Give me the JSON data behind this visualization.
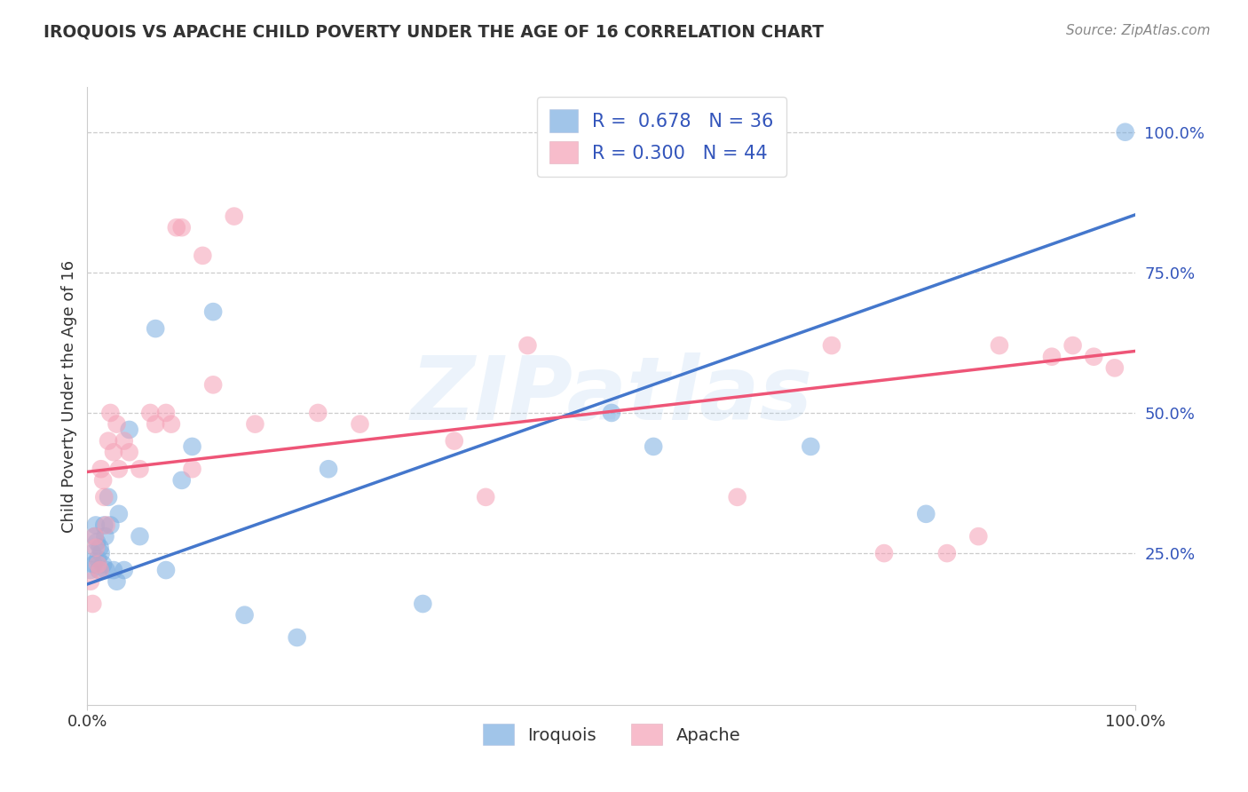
{
  "title": "IROQUOIS VS APACHE CHILD POVERTY UNDER THE AGE OF 16 CORRELATION CHART",
  "source": "Source: ZipAtlas.com",
  "ylabel": "Child Poverty Under the Age of 16",
  "xlim": [
    0,
    1
  ],
  "ylim": [
    -0.02,
    1.08
  ],
  "x_ticks": [
    0,
    1
  ],
  "x_tick_labels": [
    "0.0%",
    "100.0%"
  ],
  "y_ticks": [
    0.25,
    0.5,
    0.75,
    1.0
  ],
  "y_tick_labels": [
    "25.0%",
    "50.0%",
    "75.0%",
    "100.0%"
  ],
  "watermark": "ZIPatlas",
  "legend_r1": "R =  0.678",
  "legend_n1": "N = 36",
  "legend_r2": "R = 0.300",
  "legend_n2": "N = 44",
  "blue_scatter_color": "#7aade0",
  "pink_scatter_color": "#f5a0b5",
  "blue_line_color": "#4477cc",
  "pink_line_color": "#ee5577",
  "blue_regression_slope": 0.658,
  "blue_regression_intercept": 0.195,
  "pink_regression_slope": 0.215,
  "pink_regression_intercept": 0.395,
  "iroquois_x": [
    0.003,
    0.005,
    0.006,
    0.007,
    0.008,
    0.009,
    0.01,
    0.011,
    0.012,
    0.013,
    0.015,
    0.016,
    0.017,
    0.018,
    0.02,
    0.022,
    0.025,
    0.028,
    0.03,
    0.035,
    0.04,
    0.05,
    0.065,
    0.075,
    0.09,
    0.1,
    0.12,
    0.15,
    0.2,
    0.23,
    0.32,
    0.5,
    0.54,
    0.69,
    0.8,
    0.99
  ],
  "iroquois_y": [
    0.22,
    0.25,
    0.23,
    0.28,
    0.3,
    0.27,
    0.24,
    0.22,
    0.26,
    0.25,
    0.23,
    0.3,
    0.28,
    0.22,
    0.35,
    0.3,
    0.22,
    0.2,
    0.32,
    0.22,
    0.47,
    0.28,
    0.65,
    0.22,
    0.38,
    0.44,
    0.68,
    0.14,
    0.1,
    0.4,
    0.16,
    0.5,
    0.44,
    0.44,
    0.32,
    1.0
  ],
  "apache_x": [
    0.003,
    0.005,
    0.007,
    0.008,
    0.01,
    0.012,
    0.013,
    0.015,
    0.016,
    0.018,
    0.02,
    0.022,
    0.025,
    0.028,
    0.03,
    0.035,
    0.04,
    0.05,
    0.06,
    0.065,
    0.075,
    0.08,
    0.085,
    0.09,
    0.1,
    0.11,
    0.12,
    0.14,
    0.16,
    0.22,
    0.26,
    0.35,
    0.38,
    0.42,
    0.62,
    0.71,
    0.76,
    0.82,
    0.85,
    0.87,
    0.92,
    0.94,
    0.96,
    0.98
  ],
  "apache_y": [
    0.2,
    0.16,
    0.28,
    0.26,
    0.23,
    0.22,
    0.4,
    0.38,
    0.35,
    0.3,
    0.45,
    0.5,
    0.43,
    0.48,
    0.4,
    0.45,
    0.43,
    0.4,
    0.5,
    0.48,
    0.5,
    0.48,
    0.83,
    0.83,
    0.4,
    0.78,
    0.55,
    0.85,
    0.48,
    0.5,
    0.48,
    0.45,
    0.35,
    0.62,
    0.35,
    0.62,
    0.25,
    0.25,
    0.28,
    0.62,
    0.6,
    0.62,
    0.6,
    0.58
  ],
  "background_color": "#ffffff",
  "grid_color": "#cccccc",
  "title_color": "#333333",
  "axis_label_color": "#333333",
  "y_tick_color": "#3355bb"
}
